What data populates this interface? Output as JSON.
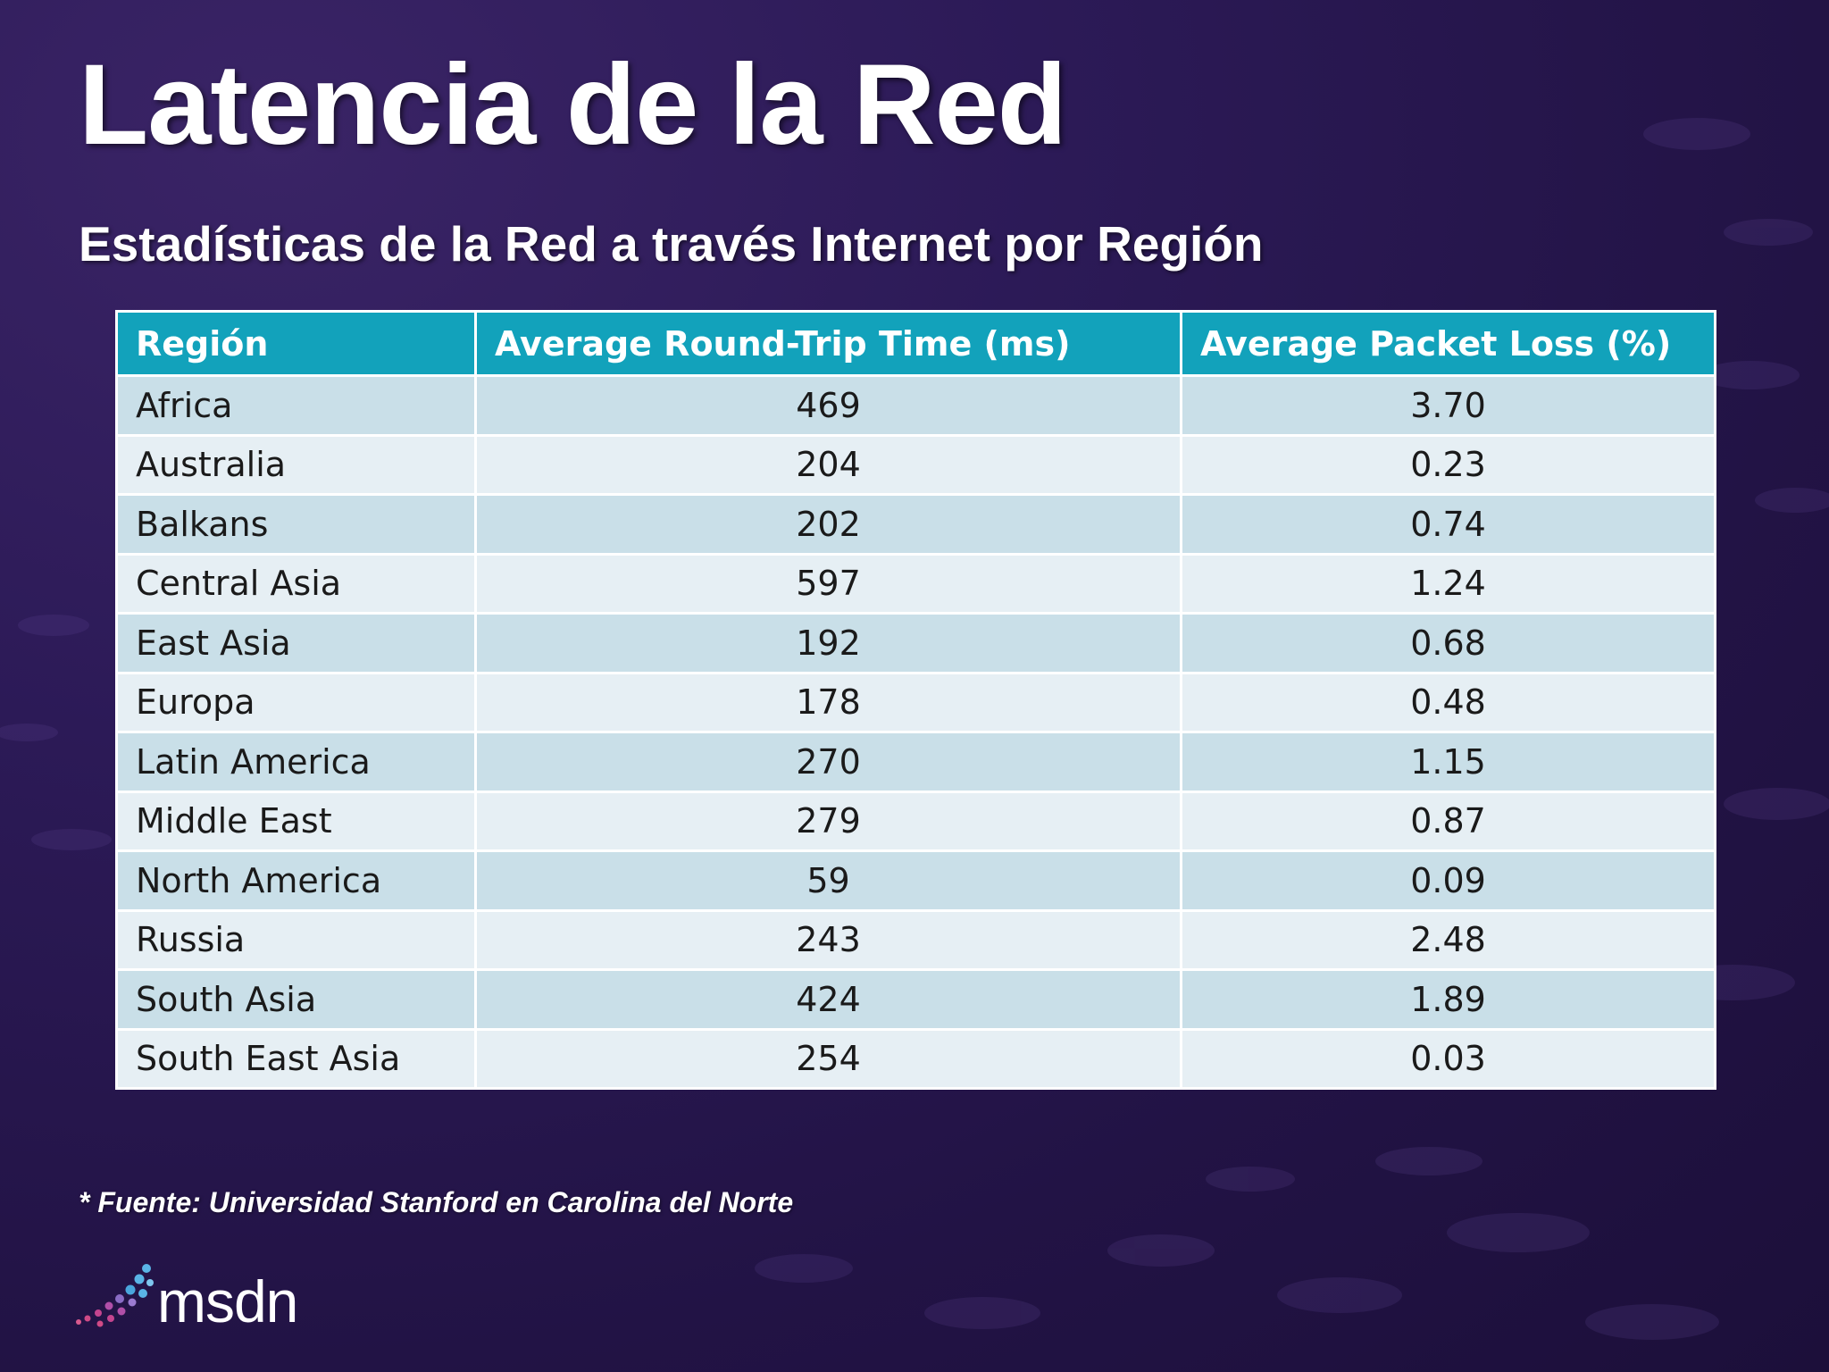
{
  "title": "Latencia de la Red",
  "subtitle": "Estadísticas de la Red a través Internet por Región",
  "table": {
    "headers": [
      "Región",
      "Average Round-Trip Time (ms)",
      "Average Packet Loss (%)"
    ],
    "rows": [
      [
        "Africa",
        "469",
        "3.70"
      ],
      [
        "Australia",
        "204",
        "0.23"
      ],
      [
        "Balkans",
        "202",
        "0.74"
      ],
      [
        "Central Asia",
        "597",
        "1.24"
      ],
      [
        "East Asia",
        "192",
        "0.68"
      ],
      [
        "Europa",
        "178",
        "0.48"
      ],
      [
        "Latin America",
        "270",
        "1.15"
      ],
      [
        "Middle East",
        "279",
        "0.87"
      ],
      [
        "North America",
        "59",
        "0.09"
      ],
      [
        "Russia",
        "243",
        "2.48"
      ],
      [
        "South Asia",
        "424",
        "1.89"
      ],
      [
        "South East Asia",
        "254",
        "0.03"
      ]
    ]
  },
  "footnote": "* Fuente: Universidad Stanford en Carolina del Norte",
  "logo": {
    "text": "msdn",
    "icon": "msdn-dots-icon"
  },
  "colors": {
    "background": "#2c1a57",
    "header": "#12a2bb",
    "row_odd": "#c9dfe8",
    "row_even": "#e6eff4"
  }
}
